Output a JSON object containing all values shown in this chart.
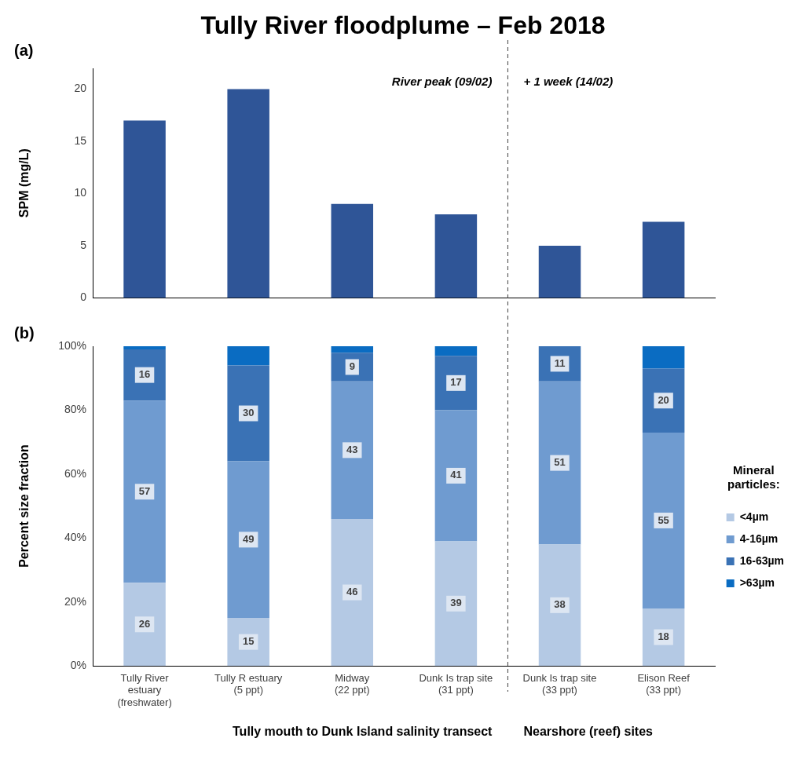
{
  "chart_data": [
    {
      "type": "bar",
      "title": "Tully River floodplume – Feb 2018",
      "categories": [
        null,
        null,
        null,
        null,
        null,
        null
      ],
      "series": [
        {
          "color": "#2f5597",
          "values": [
            17,
            20,
            9,
            8,
            5,
            7.3
          ]
        }
      ],
      "ylabel": "SPM (mg/L)",
      "ylim": [
        0,
        22
      ],
      "yticks": [
        0,
        5,
        10,
        15,
        20
      ],
      "annotations": [
        "(a)",
        "River peak (09/02)",
        "+ 1 week (14/02)"
      ]
    },
    {
      "type": "bar",
      "stacked": true,
      "categories": [
        "Tully River\nestuary\n(freshwater)",
        "Tully R estuary\n(5 ppt)",
        "Midway\n(22 ppt)",
        "Dunk Is trap site\n(31 ppt)",
        "Dunk Is trap site\n(33 ppt)",
        "Elison Reef\n(33 ppt)"
      ],
      "series": [
        {
          "name": "<4µm",
          "color": "#b4c9e4",
          "values": [
            26,
            15,
            46,
            39,
            38,
            18
          ],
          "value_labels": [
            "26",
            "15",
            "46",
            "39",
            "38",
            "18"
          ]
        },
        {
          "name": "4-16µm",
          "color": "#6f9bd0",
          "values": [
            57,
            49,
            43,
            41,
            51,
            55
          ],
          "value_labels": [
            "57",
            "49",
            "43",
            "41",
            "51",
            "55"
          ]
        },
        {
          "name": "16-63µm",
          "color": "#3a72b5",
          "values": [
            16,
            30,
            9,
            17,
            11,
            20
          ],
          "value_labels": [
            "16",
            "30",
            "9",
            "17",
            "11",
            "20"
          ]
        },
        {
          "name": ">63µm",
          "color": "#0a6cc2",
          "values": [
            1,
            6,
            2,
            3,
            0,
            7
          ]
        }
      ],
      "ylabel": "Percent size fraction",
      "ylim": [
        0,
        100
      ],
      "yticks": [
        {
          "value": 0,
          "label": "0%"
        },
        {
          "value": 20,
          "label": "20%"
        },
        {
          "value": 40,
          "label": "40%"
        },
        {
          "value": 60,
          "label": "60%"
        },
        {
          "value": 80,
          "label": "80%"
        },
        {
          "value": 100,
          "label": "100%"
        }
      ],
      "legend": "right",
      "legend_title": "Mineral particles:",
      "annotations": [
        "(b)",
        "Tully mouth to Dunk Island salinity transect",
        "Nearshore (reef) sites"
      ]
    }
  ]
}
